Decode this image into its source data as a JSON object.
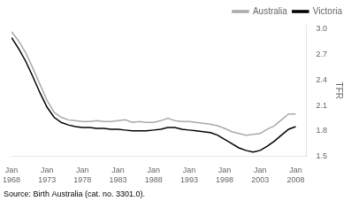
{
  "chart_data": {
    "type": "line",
    "y_label": "TFR",
    "annotations": [
      "Source: Birth Australia (cat. no. 3301.0)."
    ],
    "x": [
      1968,
      1969,
      1970,
      1971,
      1972,
      1973,
      1974,
      1975,
      1976,
      1977,
      1978,
      1979,
      1980,
      1981,
      1982,
      1983,
      1984,
      1985,
      1986,
      1987,
      1988,
      1989,
      1990,
      1991,
      1992,
      1993,
      1994,
      1995,
      1996,
      1997,
      1998,
      1999,
      2000,
      2001,
      2002,
      2003,
      2004,
      2005,
      2006,
      2007,
      2008
    ],
    "series": [
      {
        "name": "Australia",
        "color": "#aaaaaa",
        "values": [
          2.97,
          2.86,
          2.72,
          2.54,
          2.35,
          2.16,
          2.02,
          1.96,
          1.93,
          1.92,
          1.91,
          1.91,
          1.92,
          1.91,
          1.91,
          1.92,
          1.93,
          1.9,
          1.91,
          1.9,
          1.9,
          1.92,
          1.95,
          1.92,
          1.91,
          1.91,
          1.9,
          1.89,
          1.88,
          1.86,
          1.83,
          1.79,
          1.77,
          1.75,
          1.76,
          1.77,
          1.82,
          1.86,
          1.93,
          2.0,
          2.0
        ]
      },
      {
        "name": "Victoria",
        "color": "#000000",
        "values": [
          2.9,
          2.77,
          2.62,
          2.44,
          2.25,
          2.08,
          1.96,
          1.9,
          1.87,
          1.85,
          1.84,
          1.84,
          1.83,
          1.83,
          1.82,
          1.82,
          1.81,
          1.8,
          1.8,
          1.8,
          1.81,
          1.82,
          1.84,
          1.84,
          1.82,
          1.81,
          1.8,
          1.79,
          1.78,
          1.75,
          1.7,
          1.65,
          1.6,
          1.57,
          1.55,
          1.57,
          1.62,
          1.68,
          1.75,
          1.82,
          1.85
        ]
      }
    ],
    "xlim": [
      1968,
      2009.5
    ],
    "xticks": [
      {
        "value": 1968,
        "label": "Jan\n1968"
      },
      {
        "value": 1973,
        "label": "Jan\n1973"
      },
      {
        "value": 1978,
        "label": "Jan\n1978"
      },
      {
        "value": 1983,
        "label": "Jan\n1983"
      },
      {
        "value": 1988,
        "label": "Jan\n1988"
      },
      {
        "value": 1993,
        "label": "Jan\n1993"
      },
      {
        "value": 1998,
        "label": "Jan\n1998"
      },
      {
        "value": 2003,
        "label": "Jan\n2003"
      },
      {
        "value": 2008,
        "label": "Jan\n2008"
      }
    ],
    "ylim": [
      1.5,
      3.05
    ],
    "yticks": [
      1.5,
      1.8,
      2.1,
      2.4,
      2.7,
      {
        "value": 3.0,
        "label": "3.0"
      }
    ],
    "grid": false,
    "legend": "upper right"
  }
}
